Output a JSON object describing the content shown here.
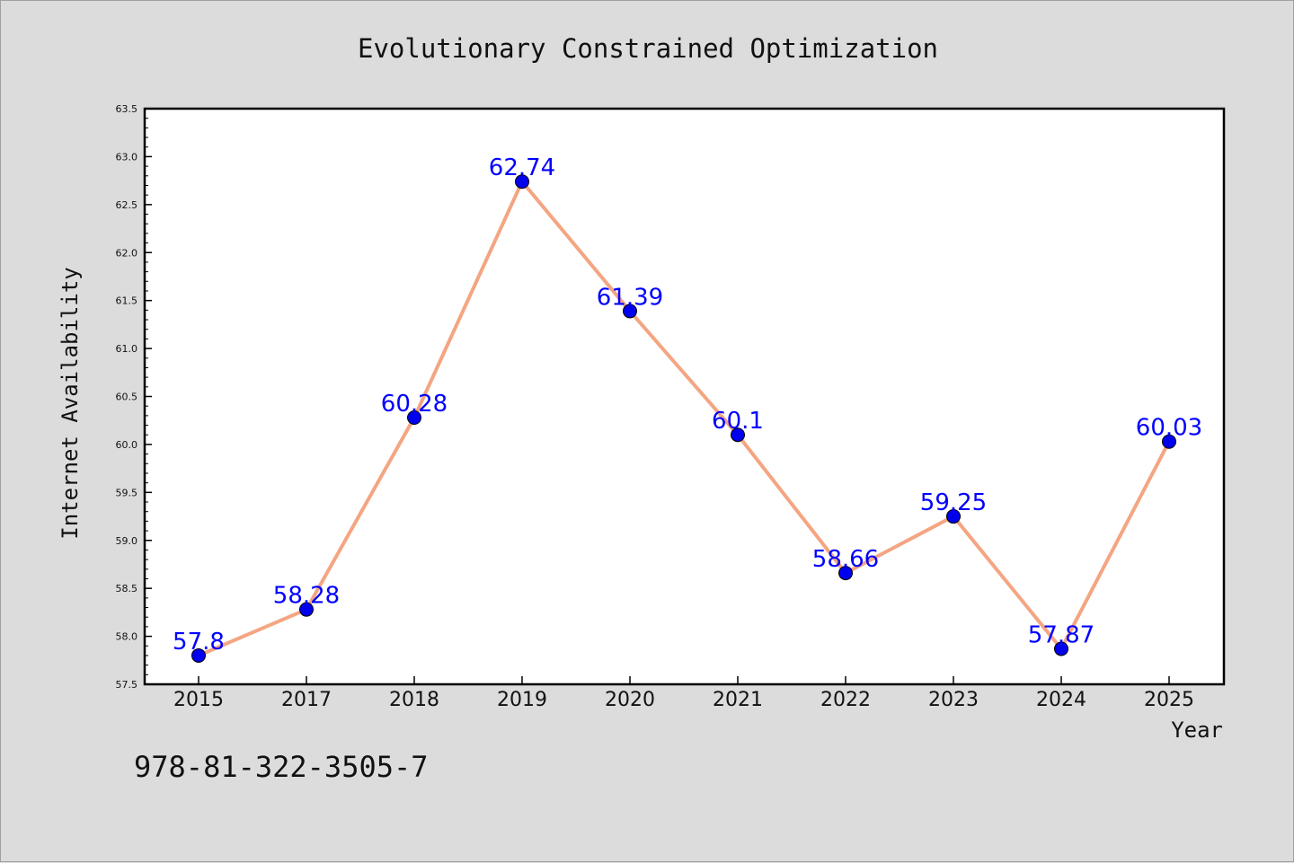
{
  "chart_data": {
    "type": "line",
    "title": "Evolutionary Constrained Optimization",
    "xlabel": "Year",
    "ylabel": "Internet Availability",
    "categories": [
      "2015",
      "2017",
      "2018",
      "2019",
      "2020",
      "2021",
      "2022",
      "2023",
      "2024",
      "2025"
    ],
    "series": [
      {
        "values": [
          57.8,
          58.28,
          60.28,
          62.74,
          61.39,
          60.1,
          58.66,
          59.25,
          57.87,
          60.03
        ],
        "labels": [
          "57.8",
          "58.28",
          "60.28",
          "62.74",
          "61.39",
          "60.1",
          "58.66",
          "59.25",
          "57.87",
          "60.03"
        ],
        "line_color": "#f4a582",
        "marker_color": "#0000ee",
        "label_color": "#0000ff"
      }
    ],
    "ylim": [
      57.5,
      63.5
    ],
    "y_ticks": [
      "57.5",
      "58.0",
      "58.5",
      "59.0",
      "59.5",
      "60.0",
      "60.5",
      "61.0",
      "61.5",
      "62.0",
      "62.5",
      "63.0",
      "63.5"
    ],
    "grid": false,
    "legend": "none"
  },
  "footer": {
    "isbn": "978-81-322-3505-7"
  },
  "colors": {
    "background": "#dcdcdc",
    "plot_background": "#ffffff",
    "axis": "#000000"
  }
}
